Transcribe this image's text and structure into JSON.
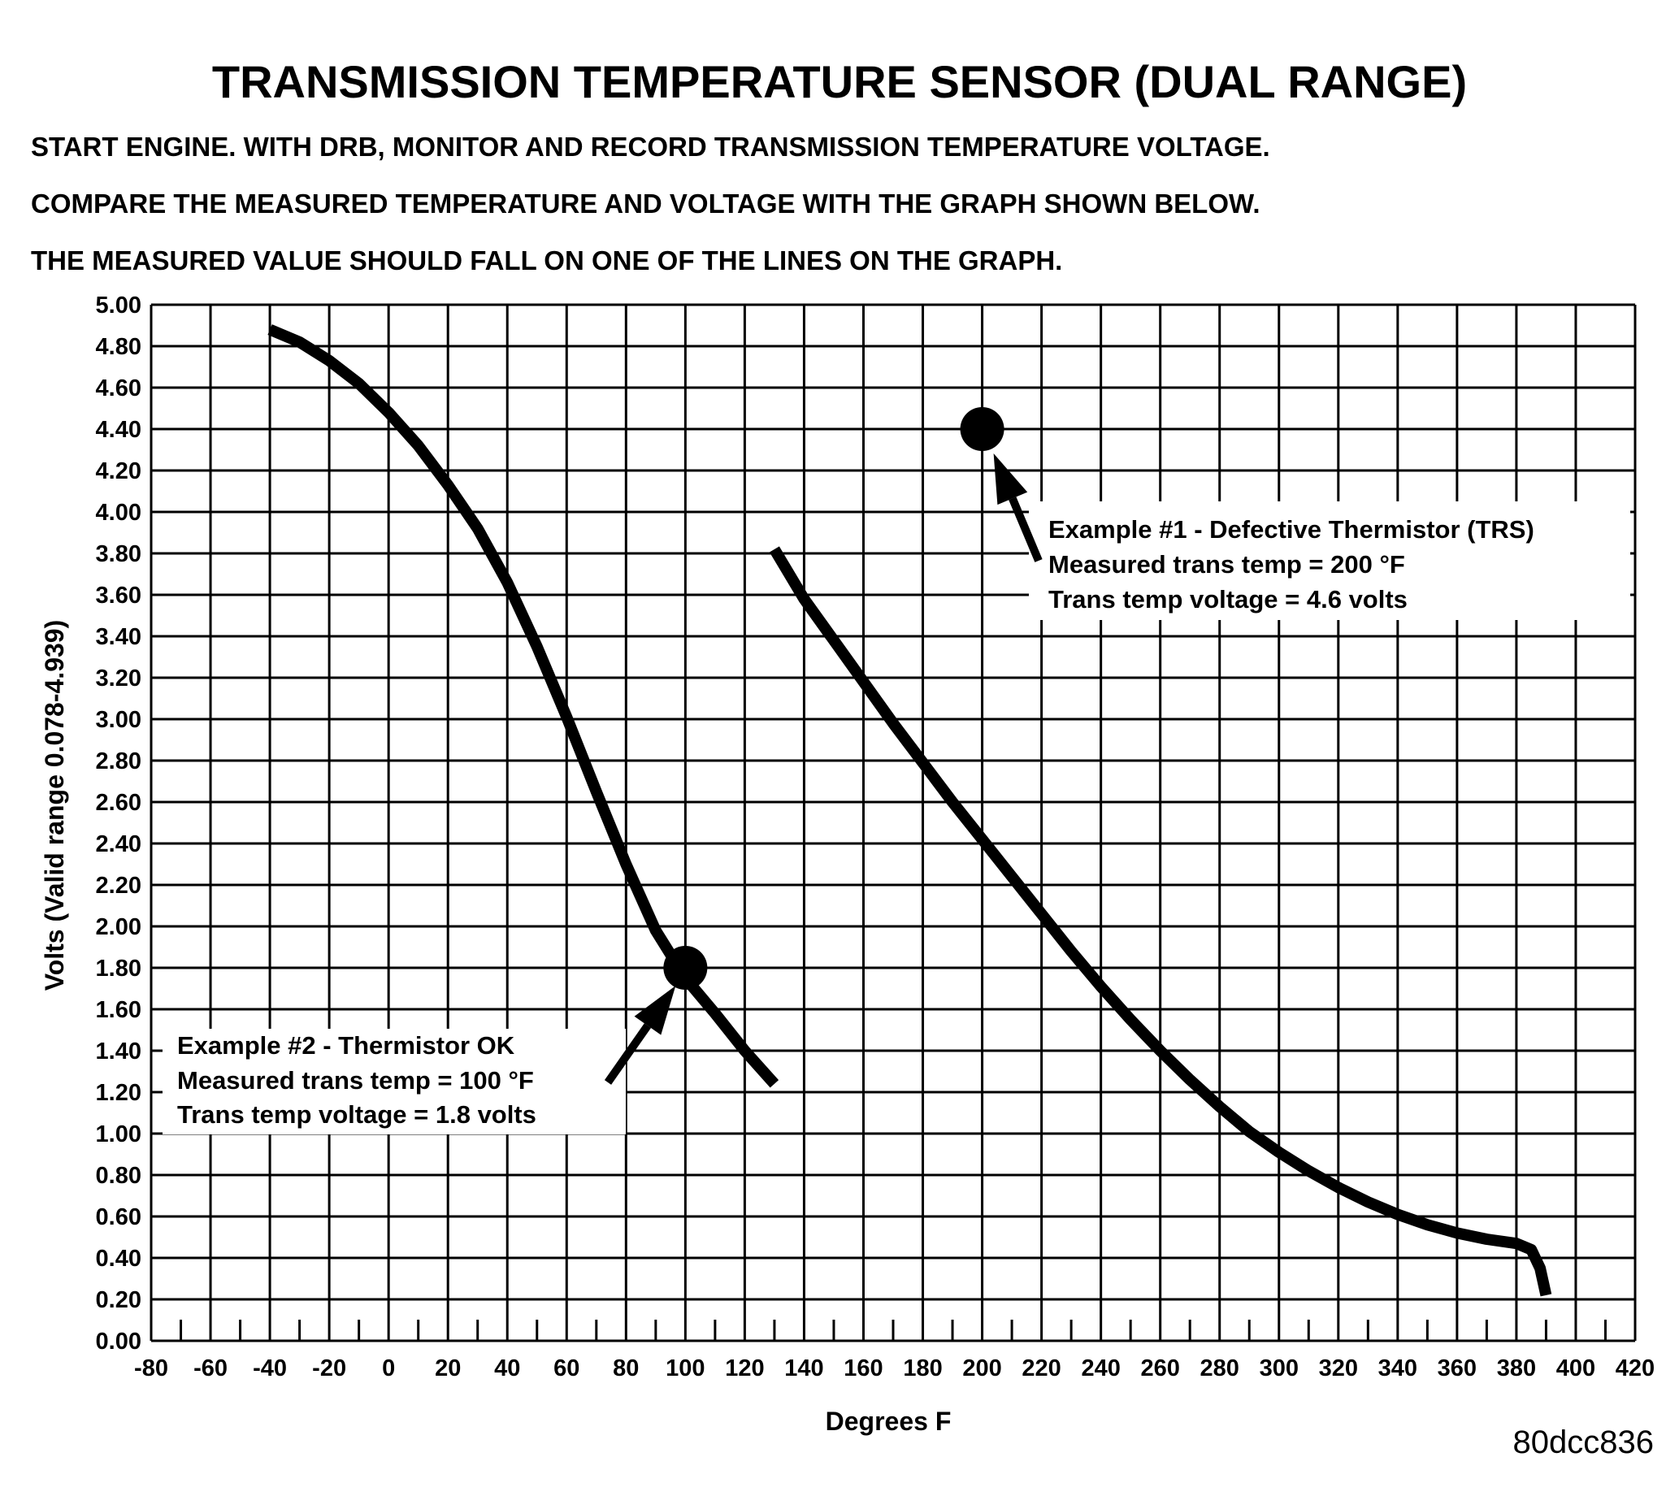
{
  "chart_data": {
    "type": "line",
    "title": "TRANSMISSION TEMPERATURE SENSOR (DUAL RANGE)",
    "instructions": [
      "START ENGINE.  WITH DRB, MONITOR AND RECORD TRANSMISSION TEMPERATURE VOLTAGE.",
      "COMPARE THE MEASURED TEMPERATURE AND VOLTAGE WITH THE GRAPH SHOWN BELOW.",
      "THE MEASURED VALUE SHOULD FALL ON ONE OF THE LINES ON THE GRAPH."
    ],
    "xlabel": "Degrees F",
    "ylabel": "Volts (Valid range 0.078-4.939)",
    "xlim": [
      -80,
      420
    ],
    "ylim": [
      0.0,
      5.0
    ],
    "xticks": [
      "-80",
      "-60",
      "-40",
      "-20",
      "0",
      "20",
      "40",
      "60",
      "80",
      "100",
      "120",
      "140",
      "160",
      "180",
      "200",
      "220",
      "240",
      "260",
      "280",
      "300",
      "320",
      "340",
      "360",
      "380",
      "400",
      "420"
    ],
    "yticks": [
      "5.00",
      "4.80",
      "4.60",
      "4.40",
      "4.20",
      "4.00",
      "3.80",
      "3.60",
      "3.40",
      "3.20",
      "3.00",
      "2.80",
      "2.60",
      "2.40",
      "2.20",
      "2.00",
      "1.80",
      "1.60",
      "1.40",
      "1.20",
      "1.00",
      "0.80",
      "0.60",
      "0.40",
      "0.20",
      "0.00"
    ],
    "grid": true,
    "series": [
      {
        "x": [
          -40,
          -30,
          -20,
          -10,
          0,
          10,
          20,
          30,
          40,
          50,
          60,
          70,
          80,
          90,
          100,
          110,
          120,
          130
        ],
        "y": [
          4.88,
          4.82,
          4.73,
          4.62,
          4.48,
          4.32,
          4.13,
          3.92,
          3.66,
          3.35,
          3.01,
          2.65,
          2.3,
          1.98,
          1.75,
          1.58,
          1.4,
          1.24
        ]
      },
      {
        "x": [
          130,
          140,
          150,
          160,
          170,
          180,
          190,
          200,
          210,
          220,
          230,
          240,
          250,
          260,
          270,
          280,
          290,
          300,
          310,
          320,
          330,
          340,
          350,
          360,
          370,
          380,
          385,
          388,
          390
        ],
        "y": [
          3.82,
          3.58,
          3.38,
          3.18,
          2.98,
          2.79,
          2.6,
          2.42,
          2.24,
          2.06,
          1.88,
          1.71,
          1.55,
          1.4,
          1.26,
          1.13,
          1.01,
          0.91,
          0.82,
          0.74,
          0.67,
          0.61,
          0.56,
          0.52,
          0.49,
          0.47,
          0.44,
          0.35,
          0.22
        ]
      }
    ],
    "annotations": [
      {
        "point": {
          "x": 200,
          "y": 4.4
        },
        "lines": [
          "Example #1 - Defective Thermistor (TRS)",
          "Measured trans temp = 200 °F",
          "Trans temp voltage = 4.6 volts"
        ]
      },
      {
        "point": {
          "x": 100,
          "y": 1.8
        },
        "lines": [
          "Example #2 - Thermistor OK",
          "Measured trans temp = 100 °F",
          "Trans temp voltage = 1.8 volts"
        ]
      }
    ],
    "figure_id": "80dcc836"
  }
}
